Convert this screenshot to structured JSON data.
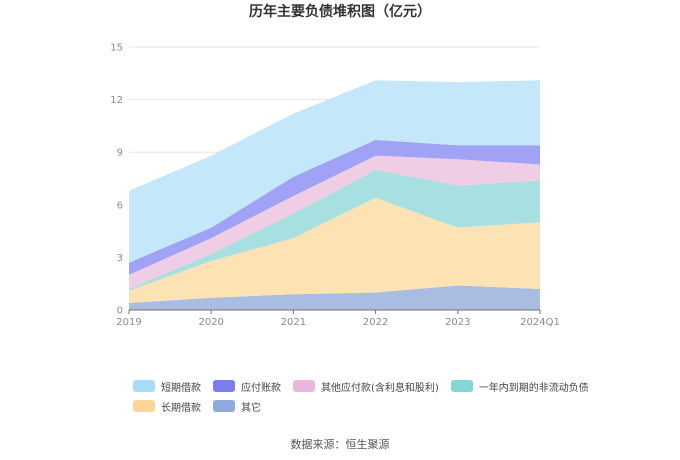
{
  "chart_data": {
    "type": "area",
    "stacked": true,
    "title": "历年主要负债堆积图（亿元）",
    "categories": [
      "2019",
      "2020",
      "2021",
      "2022",
      "2023",
      "2024Q1"
    ],
    "yticks": [
      "0",
      "3",
      "6",
      "9",
      "12",
      "15"
    ],
    "ylim": [
      0,
      15
    ],
    "grid": true,
    "legend_position": "bottom",
    "series": [
      {
        "name": "其它",
        "color": "#a9bde3",
        "values": [
          0.4,
          0.7,
          0.9,
          1.0,
          1.4,
          1.2
        ]
      },
      {
        "name": "长期借款",
        "color": "#fde2b3",
        "values": [
          0.7,
          2.1,
          3.2,
          5.4,
          3.3,
          3.8
        ]
      },
      {
        "name": "一年内到期的非流动负债",
        "color": "#a8e0e2",
        "values": [
          0.1,
          0.4,
          1.4,
          1.6,
          2.4,
          2.4
        ]
      },
      {
        "name": "其他应付款(含利息和股利)",
        "color": "#efcde4",
        "values": [
          0.8,
          0.9,
          1.0,
          0.8,
          1.5,
          0.9
        ]
      },
      {
        "name": "应付账款",
        "color": "#a0a3f5",
        "values": [
          0.7,
          0.6,
          1.1,
          0.9,
          0.8,
          1.1
        ]
      },
      {
        "name": "短期借款",
        "color": "#c4e7fa",
        "values": [
          4.1,
          4.1,
          3.6,
          3.4,
          3.6,
          3.7
        ]
      }
    ]
  },
  "legend": {
    "row1": [
      {
        "label": "短期借款",
        "color": "#a5ddf9"
      },
      {
        "label": "应付账款",
        "color": "#7a7cf0"
      },
      {
        "label": "其他应付款(含利息和股利)",
        "color": "#eab6db"
      },
      {
        "label": "一年内到期的非流动负债",
        "color": "#86d6d6"
      }
    ],
    "row2": [
      {
        "label": "长期借款",
        "color": "#fcd597"
      },
      {
        "label": "其它",
        "color": "#8fa9dc"
      }
    ]
  },
  "source": "数据来源：恒生聚源"
}
